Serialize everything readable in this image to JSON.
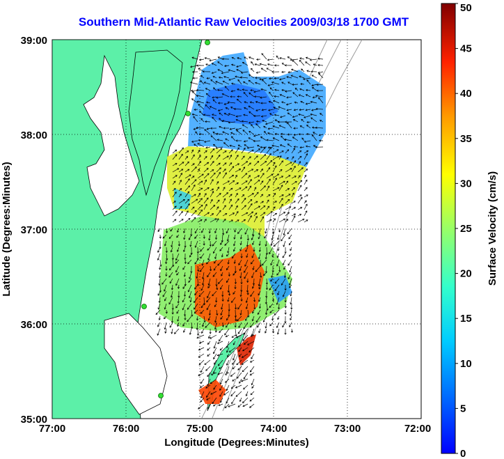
{
  "title": "Southern Mid-Atlantic Raw Velocities 2009/03/18 1700 GMT",
  "axes": {
    "xlabel": "Longitude (Degrees:Minutes)",
    "ylabel": "Latitude (Degrees:Minutes)",
    "xticks": [
      "77:00",
      "76:00",
      "75:00",
      "74:00",
      "73:00",
      "72:00"
    ],
    "yticks": [
      "39:00",
      "38:00",
      "37:00",
      "36:00",
      "35:00"
    ]
  },
  "colorbar": {
    "label": "Surface Velocity (cm/s)",
    "ticks": [
      "50",
      "45",
      "40",
      "35",
      "30",
      "25",
      "20",
      "15",
      "10",
      "5",
      "0"
    ],
    "min": 0,
    "max": 50
  },
  "colors": {
    "land": "#5cf0a8",
    "water": "#ffffff",
    "title": "#0000ff",
    "coastline": "#000000",
    "bathymetry": "#9a9a9a",
    "station": "#33dd33"
  },
  "chart_data": {
    "type": "heatmap",
    "x_range_deg_lon": [
      -77,
      -72
    ],
    "y_range_deg_lat": [
      35,
      39
    ],
    "grid": true,
    "colormap": "jet",
    "value_range_cm_s": [
      0,
      50
    ]
  }
}
